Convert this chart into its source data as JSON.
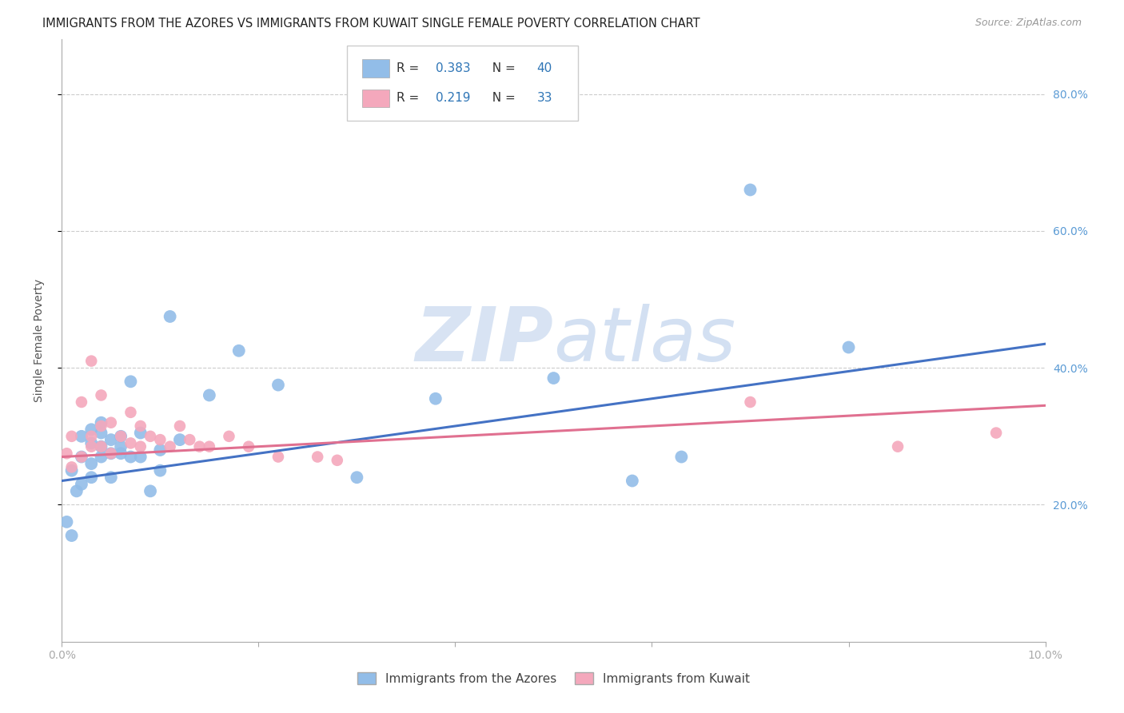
{
  "title": "IMMIGRANTS FROM THE AZORES VS IMMIGRANTS FROM KUWAIT SINGLE FEMALE POVERTY CORRELATION CHART",
  "source": "Source: ZipAtlas.com",
  "ylabel": "Single Female Poverty",
  "y_ticks": [
    0.2,
    0.4,
    0.6,
    0.8
  ],
  "y_tick_labels": [
    "20.0%",
    "40.0%",
    "60.0%",
    "80.0%"
  ],
  "xlim": [
    0.0,
    0.1
  ],
  "ylim": [
    0.0,
    0.88
  ],
  "azores_color": "#92BDE8",
  "kuwait_color": "#F4A8BC",
  "azores_line_color": "#4472C4",
  "kuwait_line_color": "#E07090",
  "background_color": "#FFFFFF",
  "grid_color": "#CCCCCC",
  "azores_x": [
    0.0005,
    0.001,
    0.001,
    0.0015,
    0.002,
    0.002,
    0.002,
    0.003,
    0.003,
    0.003,
    0.003,
    0.004,
    0.004,
    0.004,
    0.004,
    0.005,
    0.005,
    0.005,
    0.006,
    0.006,
    0.006,
    0.007,
    0.007,
    0.008,
    0.008,
    0.009,
    0.01,
    0.01,
    0.011,
    0.012,
    0.015,
    0.018,
    0.022,
    0.03,
    0.038,
    0.05,
    0.058,
    0.063,
    0.07,
    0.08
  ],
  "azores_y": [
    0.175,
    0.155,
    0.25,
    0.22,
    0.27,
    0.3,
    0.23,
    0.26,
    0.29,
    0.31,
    0.24,
    0.285,
    0.305,
    0.32,
    0.27,
    0.275,
    0.295,
    0.24,
    0.275,
    0.3,
    0.285,
    0.27,
    0.38,
    0.305,
    0.27,
    0.22,
    0.25,
    0.28,
    0.475,
    0.295,
    0.36,
    0.425,
    0.375,
    0.24,
    0.355,
    0.385,
    0.235,
    0.27,
    0.66,
    0.43
  ],
  "kuwait_x": [
    0.0005,
    0.001,
    0.001,
    0.002,
    0.002,
    0.003,
    0.003,
    0.003,
    0.004,
    0.004,
    0.004,
    0.005,
    0.005,
    0.006,
    0.007,
    0.007,
    0.008,
    0.008,
    0.009,
    0.01,
    0.011,
    0.012,
    0.013,
    0.014,
    0.015,
    0.017,
    0.019,
    0.022,
    0.026,
    0.028,
    0.07,
    0.085,
    0.095
  ],
  "kuwait_y": [
    0.275,
    0.255,
    0.3,
    0.27,
    0.35,
    0.3,
    0.285,
    0.41,
    0.285,
    0.315,
    0.36,
    0.275,
    0.32,
    0.3,
    0.29,
    0.335,
    0.285,
    0.315,
    0.3,
    0.295,
    0.285,
    0.315,
    0.295,
    0.285,
    0.285,
    0.3,
    0.285,
    0.27,
    0.27,
    0.265,
    0.35,
    0.285,
    0.305
  ],
  "az_line_x0": 0.0,
  "az_line_y0": 0.235,
  "az_line_x1": 0.1,
  "az_line_y1": 0.435,
  "kw_line_x0": 0.0,
  "kw_line_y0": 0.27,
  "kw_line_x1": 0.1,
  "kw_line_y1": 0.345
}
